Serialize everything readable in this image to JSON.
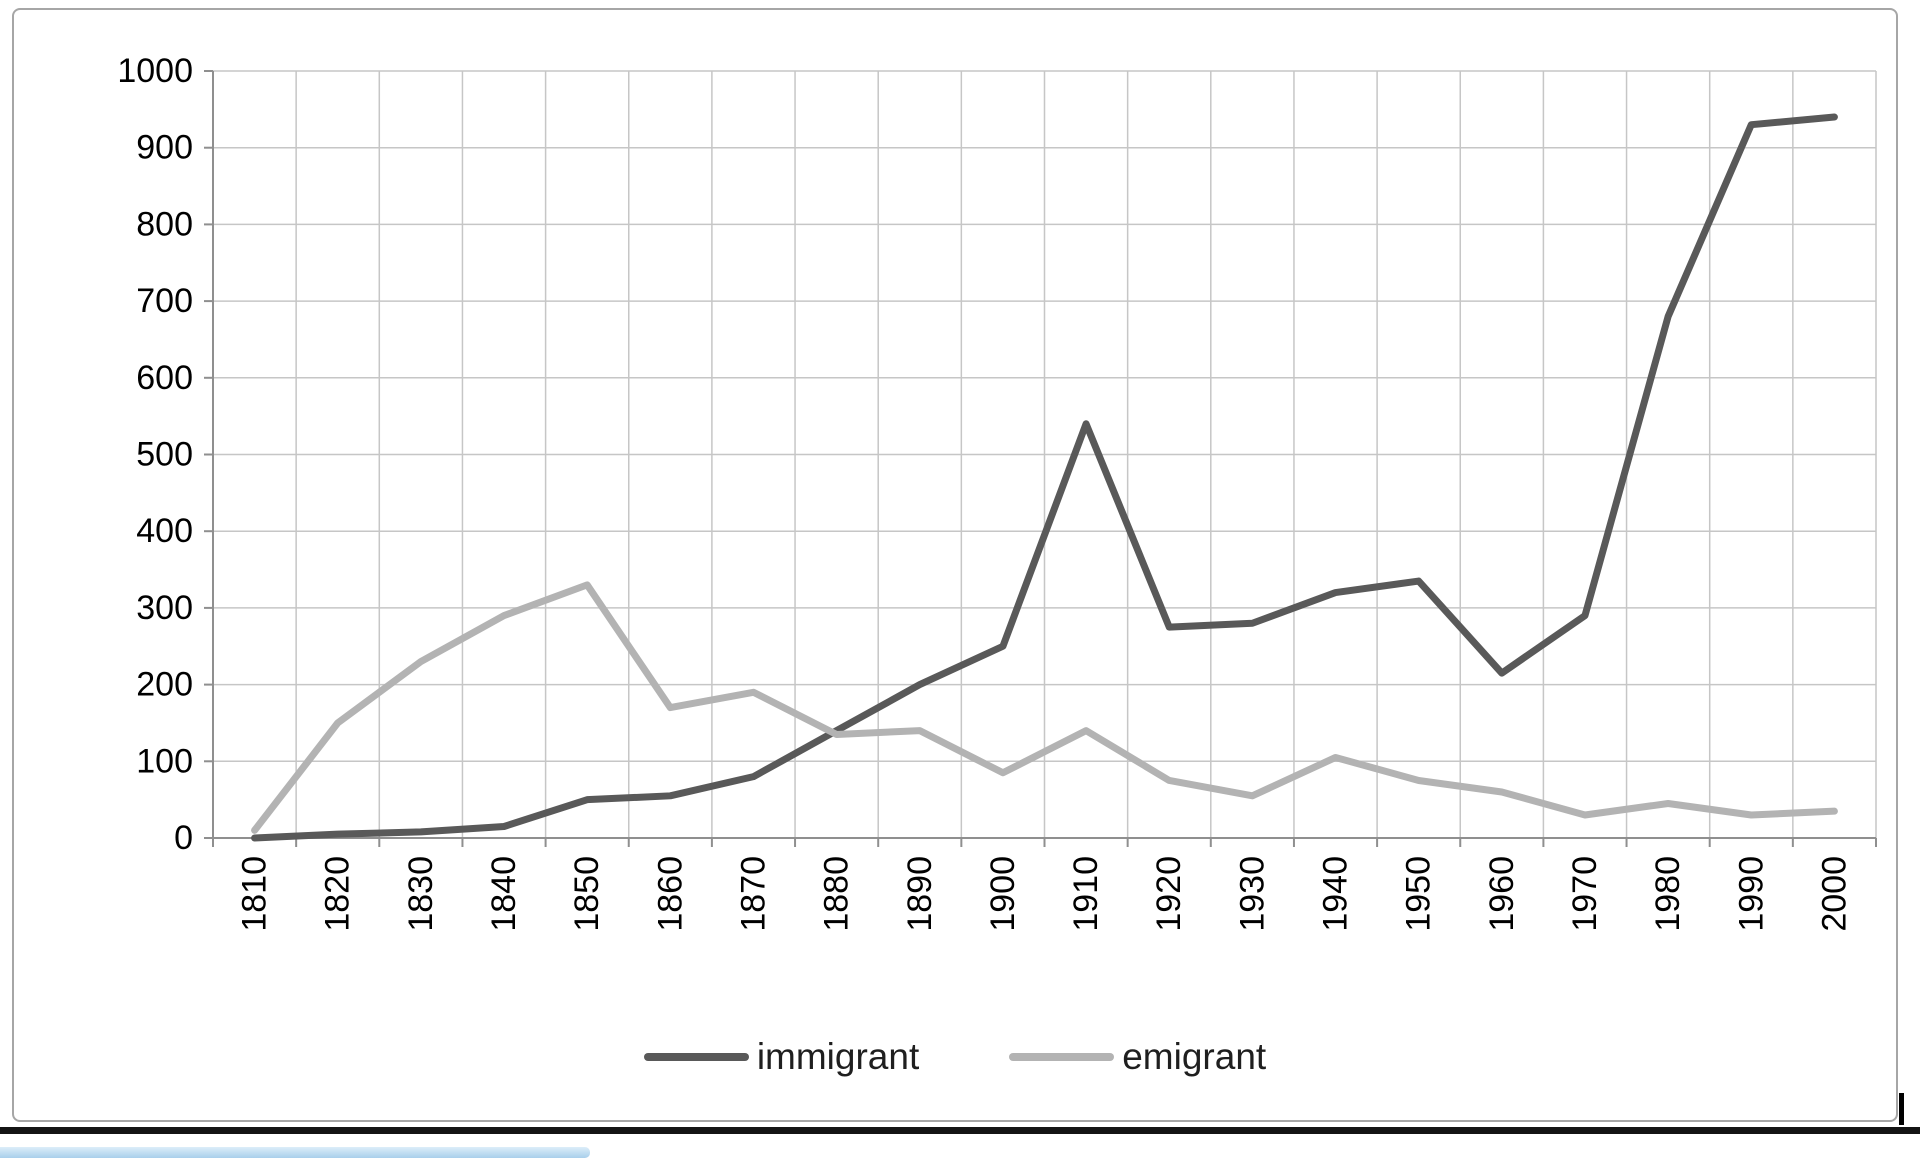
{
  "chart_data": {
    "type": "line",
    "title": "",
    "xlabel": "",
    "ylabel": "",
    "categories": [
      "1810",
      "1820",
      "1830",
      "1840",
      "1850",
      "1860",
      "1870",
      "1880",
      "1890",
      "1900",
      "1910",
      "1920",
      "1930",
      "1940",
      "1950",
      "1960",
      "1970",
      "1980",
      "1990",
      "2000"
    ],
    "series": [
      {
        "name": "immigrant",
        "color": "#595959",
        "values": [
          0,
          5,
          8,
          15,
          50,
          55,
          80,
          140,
          200,
          250,
          540,
          275,
          280,
          320,
          335,
          215,
          290,
          680,
          930,
          940
        ]
      },
      {
        "name": "emigrant",
        "color": "#b3b3b3",
        "values": [
          10,
          150,
          230,
          290,
          330,
          170,
          190,
          135,
          140,
          85,
          140,
          75,
          55,
          105,
          75,
          60,
          30,
          45,
          30,
          35
        ]
      }
    ],
    "ylim": [
      0,
      1000
    ],
    "y_tick_interval": 100,
    "grid": "horizontal and vertical gridlines",
    "legend_position": "bottom",
    "colors": {
      "gridline": "#c6c6c6",
      "axis": "#8f8f8f",
      "tick_label": "#000000"
    }
  }
}
